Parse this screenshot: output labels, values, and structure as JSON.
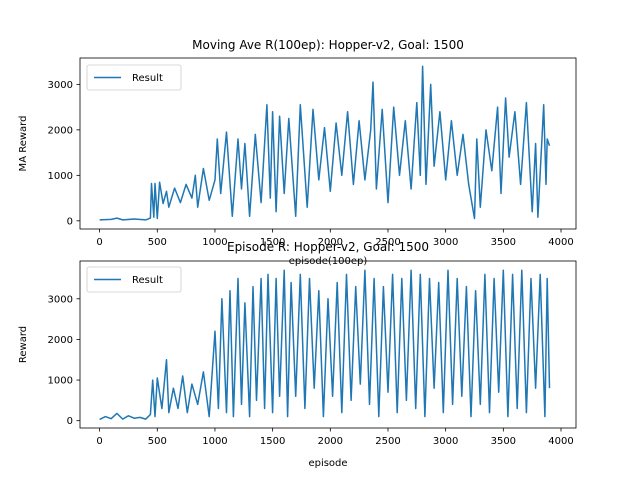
{
  "chart_data": [
    {
      "type": "line",
      "title": "Moving Ave R(100ep): Hopper-v2, Goal: 1500",
      "xlabel": "episode(100ep)",
      "ylabel": "MA Reward",
      "xlim": [
        -170,
        4130
      ],
      "ylim": [
        -180,
        3580
      ],
      "xticks": [
        0,
        500,
        1000,
        1500,
        2000,
        2500,
        3000,
        3500,
        4000
      ],
      "xtick_labels": [
        "0",
        "500",
        "1000",
        "1500",
        "2000",
        "2500",
        "3000",
        "3500",
        "4000"
      ],
      "yticks": [
        0,
        1000,
        2000,
        3000
      ],
      "ytick_labels": [
        "0",
        "1000",
        "2000",
        "3000"
      ],
      "legend": {
        "position": "top-left",
        "entries": [
          "Result"
        ]
      },
      "grid": false,
      "series": [
        {
          "name": "Result",
          "color": "#1f77b4",
          "x": [
            0,
            100,
            150,
            200,
            300,
            400,
            440,
            450,
            470,
            480,
            500,
            520,
            550,
            580,
            600,
            650,
            700,
            750,
            800,
            830,
            850,
            900,
            950,
            1000,
            1020,
            1050,
            1100,
            1150,
            1200,
            1230,
            1260,
            1300,
            1350,
            1400,
            1450,
            1480,
            1500,
            1530,
            1560,
            1600,
            1640,
            1700,
            1740,
            1800,
            1850,
            1900,
            1950,
            2000,
            2050,
            2100,
            2150,
            2200,
            2250,
            2300,
            2350,
            2370,
            2400,
            2450,
            2500,
            2550,
            2600,
            2650,
            2700,
            2750,
            2780,
            2800,
            2830,
            2870,
            2900,
            2950,
            3000,
            3050,
            3100,
            3150,
            3200,
            3250,
            3270,
            3300,
            3350,
            3400,
            3450,
            3480,
            3520,
            3550,
            3600,
            3650,
            3700,
            3750,
            3780,
            3800,
            3850,
            3870,
            3880,
            3900
          ],
          "y": [
            20,
            30,
            60,
            20,
            40,
            20,
            60,
            820,
            80,
            820,
            50,
            850,
            380,
            650,
            300,
            720,
            400,
            800,
            500,
            1000,
            300,
            1150,
            450,
            900,
            1800,
            600,
            1950,
            100,
            1800,
            700,
            1700,
            100,
            1900,
            400,
            2550,
            500,
            2400,
            200,
            2300,
            600,
            2250,
            100,
            2550,
            300,
            2450,
            900,
            2050,
            650,
            2150,
            1000,
            2400,
            800,
            2200,
            900,
            2000,
            3050,
            700,
            2450,
            400,
            2500,
            1000,
            2200,
            700,
            2600,
            1000,
            3400,
            800,
            3000,
            1200,
            2400,
            900,
            2200,
            1000,
            1900,
            800,
            50,
            1800,
            300,
            2000,
            1100,
            2500,
            600,
            2700,
            1400,
            2400,
            800,
            2600,
            200,
            1700,
            80,
            2550,
            800,
            1800,
            1650
          ]
        }
      ]
    },
    {
      "type": "line",
      "title": "Episode R: Hopper-v2, Goal: 1500",
      "xlabel": "episode",
      "ylabel": "Reward",
      "xlim": [
        -170,
        4130
      ],
      "ylim": [
        -180,
        3930
      ],
      "xticks": [
        0,
        500,
        1000,
        1500,
        2000,
        2500,
        3000,
        3500,
        4000
      ],
      "xtick_labels": [
        "0",
        "500",
        "1000",
        "1500",
        "2000",
        "2500",
        "3000",
        "3500",
        "4000"
      ],
      "yticks": [
        0,
        1000,
        2000,
        3000
      ],
      "ytick_labels": [
        "0",
        "1000",
        "2000",
        "3000"
      ],
      "legend": {
        "position": "top-left",
        "entries": [
          "Result"
        ]
      },
      "grid": false,
      "series": [
        {
          "name": "Result",
          "color": "#1f77b4",
          "x": [
            0,
            50,
            100,
            150,
            200,
            250,
            300,
            350,
            400,
            440,
            460,
            480,
            500,
            540,
            580,
            600,
            640,
            680,
            720,
            760,
            800,
            850,
            900,
            950,
            1000,
            1030,
            1060,
            1100,
            1130,
            1160,
            1200,
            1230,
            1260,
            1300,
            1330,
            1360,
            1400,
            1430,
            1460,
            1500,
            1530,
            1560,
            1600,
            1630,
            1660,
            1700,
            1740,
            1780,
            1820,
            1860,
            1900,
            1940,
            1980,
            2020,
            2060,
            2100,
            2140,
            2180,
            2220,
            2260,
            2300,
            2340,
            2380,
            2420,
            2460,
            2500,
            2540,
            2580,
            2620,
            2660,
            2700,
            2740,
            2780,
            2820,
            2860,
            2900,
            2940,
            2980,
            3020,
            3060,
            3100,
            3140,
            3180,
            3220,
            3260,
            3300,
            3340,
            3380,
            3420,
            3460,
            3500,
            3540,
            3580,
            3620,
            3660,
            3700,
            3740,
            3780,
            3820,
            3860,
            3880,
            3900
          ],
          "y": [
            30,
            100,
            50,
            180,
            40,
            120,
            60,
            80,
            40,
            150,
            1000,
            100,
            1050,
            300,
            1500,
            200,
            800,
            300,
            1100,
            200,
            900,
            400,
            1200,
            100,
            2200,
            300,
            3000,
            200,
            3200,
            100,
            3500,
            400,
            2900,
            100,
            3300,
            500,
            3500,
            300,
            3600,
            200,
            3500,
            600,
            3700,
            100,
            3400,
            600,
            3600,
            300,
            3500,
            800,
            3200,
            100,
            3000,
            600,
            3400,
            200,
            3600,
            500,
            3300,
            900,
            3700,
            400,
            3500,
            100,
            3300,
            700,
            3600,
            200,
            3500,
            500,
            3700,
            300,
            3600,
            100,
            3500,
            800,
            3400,
            200,
            3700,
            400,
            3500,
            600,
            3300,
            100,
            3200,
            400,
            3600,
            200,
            3500,
            700,
            3700,
            100,
            3600,
            300,
            3700,
            200,
            3500,
            800,
            3600,
            100,
            3500,
            800
          ]
        }
      ]
    }
  ]
}
